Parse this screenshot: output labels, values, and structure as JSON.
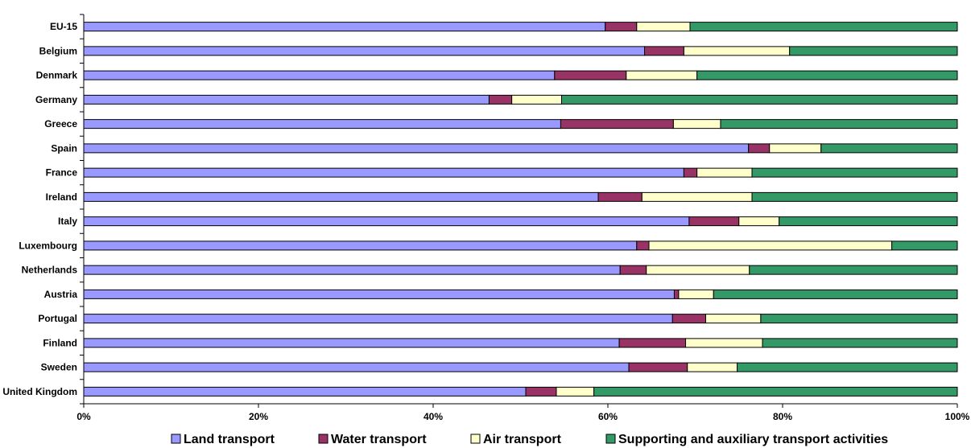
{
  "chart_data": {
    "type": "bar",
    "orientation": "horizontal",
    "stacked": "percent",
    "title": "",
    "xlabel": "",
    "ylabel": "",
    "xlim": [
      0,
      100
    ],
    "x_ticks": [
      "0%",
      "20%",
      "40%",
      "60%",
      "80%",
      "100%"
    ],
    "grid": false,
    "legend_position": "bottom",
    "categories": [
      "EU-15",
      "Belgium",
      "Denmark",
      "Germany",
      "Greece",
      "Spain",
      "France",
      "Ireland",
      "Italy",
      "Luxembourg",
      "Netherlands",
      "Austria",
      "Portugal",
      "Finland",
      "Sweden",
      "United Kingdom"
    ],
    "series": [
      {
        "name": "Land transport",
        "color": "#9999ff",
        "values": [
          59.7,
          64.2,
          53.9,
          46.4,
          54.6,
          76.1,
          68.7,
          58.9,
          69.3,
          63.3,
          61.4,
          67.6,
          67.4,
          61.3,
          62.4,
          50.6
        ]
      },
      {
        "name": "Water transport",
        "color": "#993366",
        "values": [
          3.6,
          4.5,
          8.2,
          2.6,
          12.9,
          2.4,
          1.5,
          5.0,
          5.7,
          1.4,
          3.0,
          0.5,
          3.8,
          7.6,
          6.7,
          3.5
        ]
      },
      {
        "name": "Air transport",
        "color": "#ffffcc",
        "values": [
          6.1,
          12.1,
          8.1,
          5.7,
          5.4,
          5.9,
          6.3,
          12.6,
          4.6,
          27.8,
          11.8,
          4.0,
          6.3,
          8.8,
          5.7,
          4.3
        ]
      },
      {
        "name": "Supporting and auxiliary transport activities",
        "color": "#339966",
        "values": [
          30.6,
          19.2,
          29.8,
          45.3,
          27.1,
          15.6,
          23.5,
          23.5,
          20.4,
          7.5,
          23.8,
          27.9,
          22.5,
          22.3,
          25.2,
          41.6
        ]
      }
    ]
  }
}
